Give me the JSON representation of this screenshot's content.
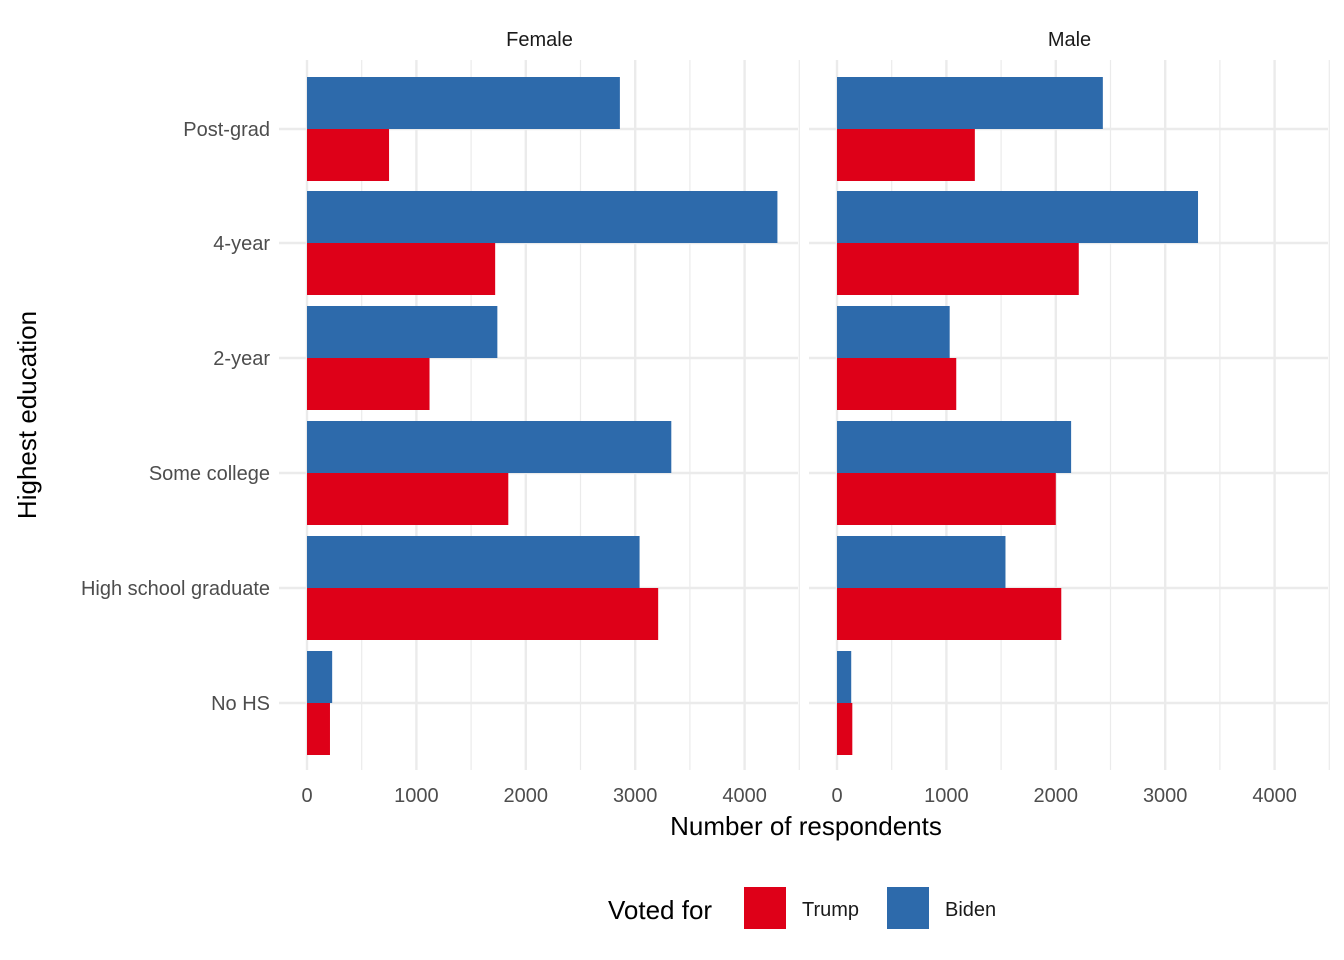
{
  "chart_data": {
    "type": "bar",
    "orientation": "horizontal",
    "xlabel": "Number of respondents",
    "ylabel": "Highest education",
    "xlim": [
      0,
      4500
    ],
    "x_ticks": [
      0,
      1000,
      2000,
      3000,
      4000
    ],
    "x_tick_labels": [
      "0",
      "1000",
      "2000",
      "3000",
      "4000"
    ],
    "categories": [
      "No HS",
      "High school graduate",
      "Some college",
      "2-year",
      "4-year",
      "Post-grad"
    ],
    "grid": true,
    "legend": {
      "title": "Voted for",
      "position": "bottom",
      "entries": [
        {
          "label": "Trump",
          "color": "#de0018"
        },
        {
          "label": "Biden",
          "color": "#2d6aab"
        }
      ]
    },
    "facets": [
      {
        "label": "Female",
        "series": [
          {
            "name": "Trump",
            "color": "#de0018",
            "values": [
              210,
              3210,
              1840,
              1120,
              1720,
              750
            ]
          },
          {
            "name": "Biden",
            "color": "#2d6aab",
            "values": [
              230,
              3040,
              3330,
              1740,
              4300,
              2860
            ]
          }
        ]
      },
      {
        "label": "Male",
        "series": [
          {
            "name": "Trump",
            "color": "#de0018",
            "values": [
              140,
              2050,
              2000,
              1090,
              2210,
              1260
            ]
          },
          {
            "name": "Biden",
            "color": "#2d6aab",
            "values": [
              130,
              1540,
              2140,
              1030,
              3300,
              2430
            ]
          }
        ]
      }
    ]
  }
}
